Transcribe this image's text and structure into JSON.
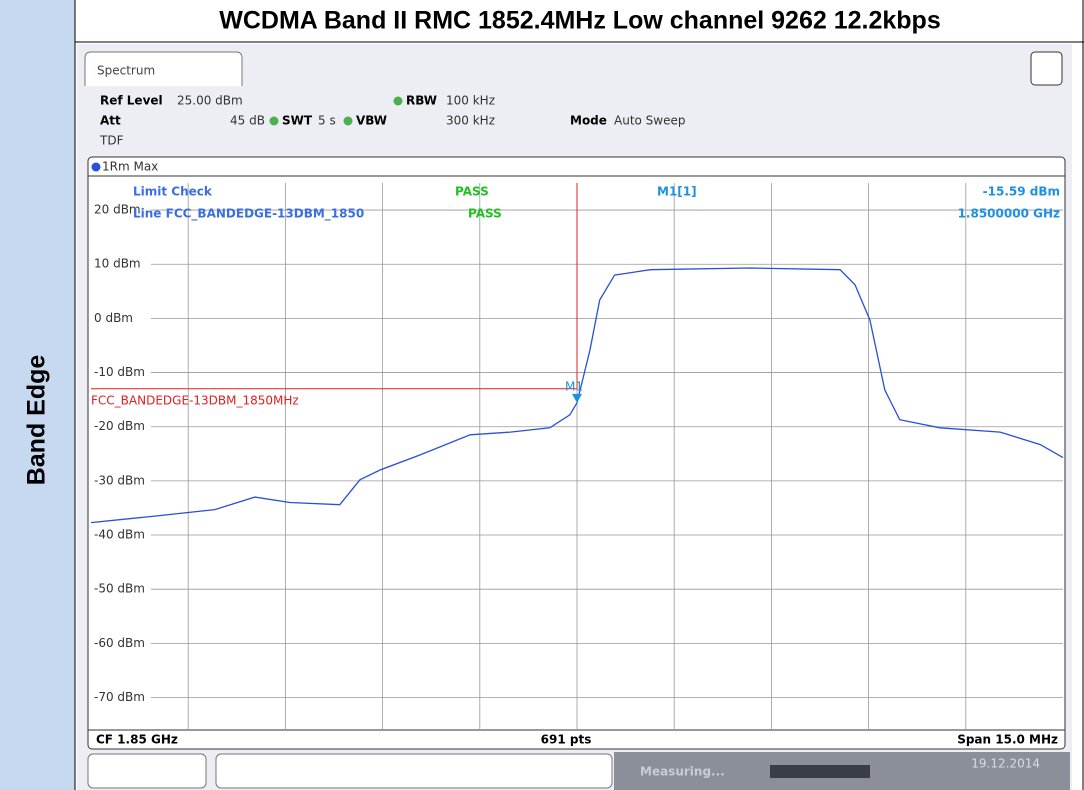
{
  "table": {
    "title": "WCDMA Band II RMC 1852.4MHz Low channel 9262 12.2kbps",
    "row_label": "Band Edge"
  },
  "screen": {
    "tab": "Spectrum",
    "ref_level_label": "Ref Level",
    "ref_level": "25.00 dBm",
    "att_label": "Att",
    "att": "45 dB",
    "swt_label": "SWT",
    "swt": "5 s",
    "rbw_label": "RBW",
    "rbw": "100 kHz",
    "vbw_label": "VBW",
    "vbw": "300 kHz",
    "mode_label": "Mode",
    "mode": "Auto Sweep",
    "tdf": "TDF",
    "trace": "1Rm Max",
    "limit_check": "Limit Check",
    "limit_check_result": "PASS",
    "limit_line_text": "Line FCC_BANDEDGE-13DBM_1850",
    "limit_line_result": "PASS",
    "cf": "CF 1.85 GHz",
    "points": "691 pts",
    "span": "Span 15.0 MHz",
    "status": "Measuring...",
    "date": "19.12.2014"
  },
  "chart_data": {
    "type": "line",
    "x": [
      1842.5,
      1843.41,
      1844.41,
      1845.03,
      1845.57,
      1846.34,
      1846.65,
      1846.96,
      1847.58,
      1848.35,
      1848.97,
      1849.58,
      1849.89,
      1850.0,
      1850.2,
      1850.35,
      1850.58,
      1851.13,
      1852.67,
      1854.06,
      1854.29,
      1854.52,
      1854.75,
      1854.98,
      1855.6,
      1856.53,
      1857.15,
      1857.5
    ],
    "series": [
      {
        "name": "1Rm Max",
        "color": "#2a4fd8",
        "values": [
          -37.7,
          -36.6,
          -35.3,
          -33,
          -34,
          -34.4,
          -29.8,
          -28,
          -25.2,
          -21.5,
          -21,
          -20.2,
          -17.8,
          -15.59,
          -5.8,
          3.4,
          8,
          9,
          9.3,
          9,
          6.2,
          -0.3,
          -13.2,
          -18.7,
          -20.2,
          -21,
          -23.3,
          -25.7
        ]
      }
    ],
    "xlim": [
      1842.5,
      1857.5
    ],
    "ylim": [
      -76,
      25
    ],
    "yticks": [
      {
        "value": 20,
        "label": "20 dBm"
      },
      {
        "value": 10,
        "label": "10 dBm"
      },
      {
        "value": 0,
        "label": "0 dBm"
      },
      {
        "value": -10,
        "label": "-10 dBm"
      },
      {
        "value": -20,
        "label": "-20 dBm"
      },
      {
        "value": -30,
        "label": "-30 dBm"
      },
      {
        "value": -40,
        "label": "-40 dBm"
      },
      {
        "value": -50,
        "label": "-50 dBm"
      },
      {
        "value": -60,
        "label": "-60 dBm"
      },
      {
        "value": -70,
        "label": "-70 dBm"
      }
    ],
    "grid": true,
    "marker": {
      "label": "M1",
      "readout": "M1[1]",
      "x": 1850,
      "y": -15.59,
      "value_label": "-15.59 dBm",
      "x_label": "1.8500000 GHz",
      "color": "#1e90e0"
    },
    "limit_line": {
      "name": "FCC_BANDEDGE-13DBM_1850MHz",
      "value": -13,
      "x_end": 1850,
      "color": "#e02020"
    }
  }
}
